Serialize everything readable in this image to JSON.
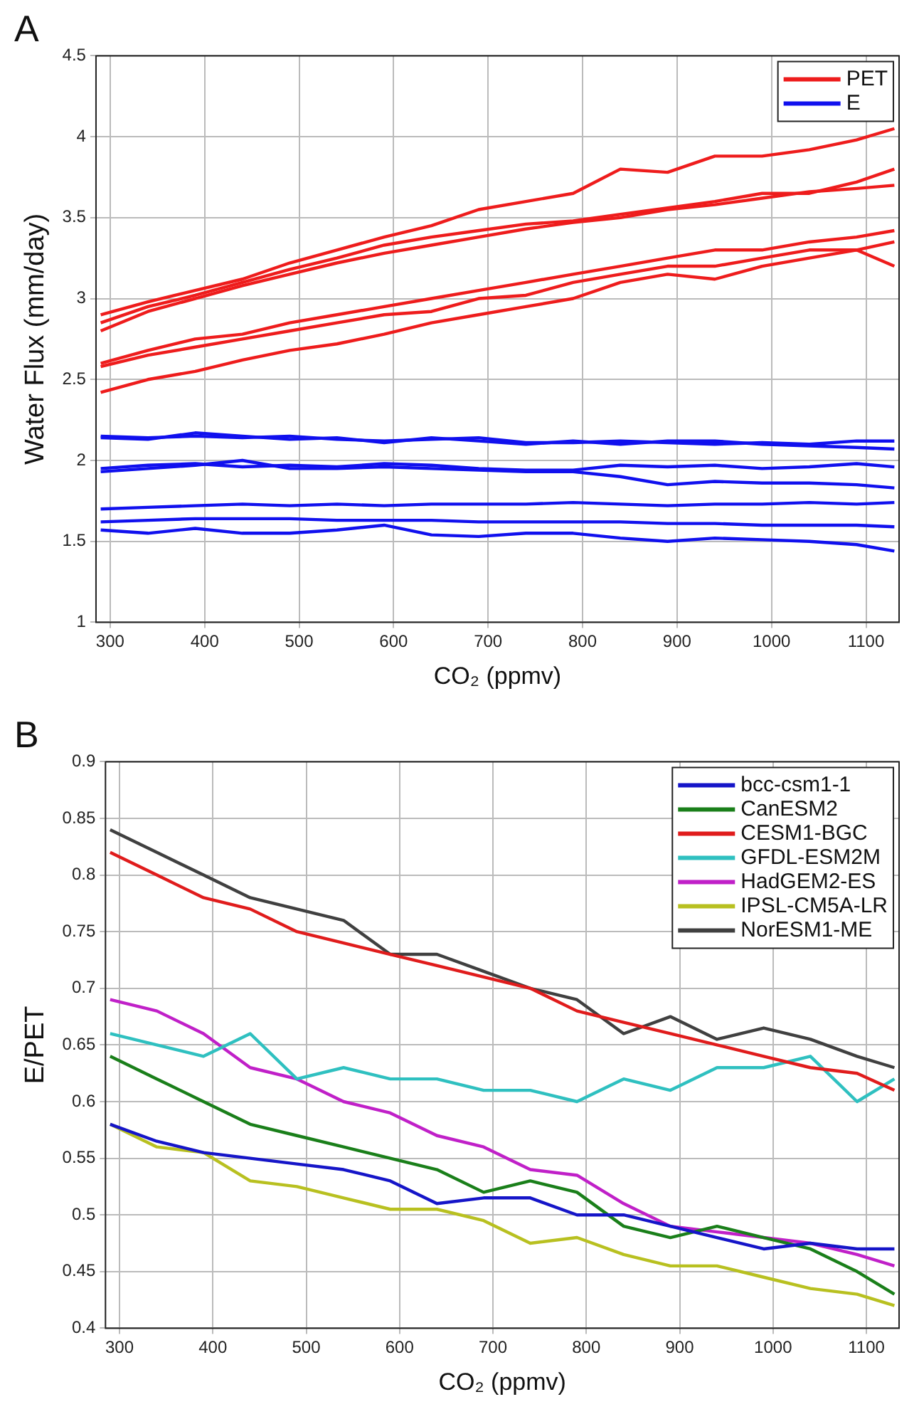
{
  "chart_data": [
    {
      "type": "line",
      "title": "A",
      "xlabel": "CO₂ (ppmv)",
      "ylabel": "Water Flux (mm/day)",
      "x": [
        290,
        340,
        390,
        440,
        490,
        540,
        590,
        640,
        690,
        740,
        790,
        840,
        890,
        940,
        990,
        1040,
        1090,
        1130
      ],
      "xlim": [
        285,
        1135
      ],
      "xticks": [
        300,
        400,
        500,
        600,
        700,
        800,
        900,
        1000,
        1100
      ],
      "ylim": [
        1,
        4.5
      ],
      "yticks": [
        1,
        1.5,
        2,
        2.5,
        3,
        3.5,
        4,
        4.5
      ],
      "grid": true,
      "legend": "top right",
      "series": [
        {
          "name": "PET",
          "color": "#ee1c1c",
          "values": [
            2.9,
            2.98,
            3.05,
            3.12,
            3.22,
            3.3,
            3.38,
            3.45,
            3.55,
            3.6,
            3.65,
            3.8,
            3.78,
            3.88,
            3.88,
            3.92,
            3.98,
            4.05
          ]
        },
        {
          "color": "#ee1c1c",
          "values": [
            2.85,
            2.95,
            3.02,
            3.1,
            3.18,
            3.25,
            3.33,
            3.38,
            3.42,
            3.46,
            3.48,
            3.52,
            3.56,
            3.6,
            3.65,
            3.65,
            3.72,
            3.8
          ]
        },
        {
          "color": "#ee1c1c",
          "values": [
            2.8,
            2.92,
            3.0,
            3.08,
            3.15,
            3.22,
            3.28,
            3.33,
            3.38,
            3.43,
            3.47,
            3.5,
            3.55,
            3.58,
            3.62,
            3.66,
            3.68,
            3.7
          ]
        },
        {
          "color": "#ee1c1c",
          "values": [
            2.6,
            2.68,
            2.75,
            2.78,
            2.85,
            2.9,
            2.95,
            3.0,
            3.05,
            3.1,
            3.15,
            3.2,
            3.25,
            3.3,
            3.3,
            3.35,
            3.38,
            3.42
          ]
        },
        {
          "color": "#ee1c1c",
          "values": [
            2.58,
            2.65,
            2.7,
            2.75,
            2.8,
            2.85,
            2.9,
            2.92,
            3.0,
            3.02,
            3.1,
            3.15,
            3.2,
            3.2,
            3.25,
            3.3,
            3.3,
            3.35
          ]
        },
        {
          "color": "#ee1c1c",
          "values": [
            2.42,
            2.5,
            2.55,
            2.62,
            2.68,
            2.72,
            2.78,
            2.85,
            2.9,
            2.95,
            3.0,
            3.1,
            3.15,
            3.12,
            3.2,
            3.25,
            3.3,
            3.2
          ]
        },
        {
          "name": "E",
          "color": "#1010ee",
          "values": [
            2.15,
            2.14,
            2.15,
            2.14,
            2.15,
            2.13,
            2.12,
            2.13,
            2.14,
            2.11,
            2.11,
            2.12,
            2.11,
            2.1,
            2.11,
            2.1,
            2.12,
            2.12
          ]
        },
        {
          "color": "#1010ee",
          "values": [
            2.14,
            2.13,
            2.17,
            2.15,
            2.13,
            2.14,
            2.11,
            2.14,
            2.12,
            2.1,
            2.12,
            2.1,
            2.12,
            2.12,
            2.1,
            2.09,
            2.08,
            2.07
          ]
        },
        {
          "color": "#1010ee",
          "values": [
            1.95,
            1.97,
            1.98,
            1.96,
            1.97,
            1.96,
            1.98,
            1.97,
            1.95,
            1.94,
            1.94,
            1.97,
            1.96,
            1.97,
            1.95,
            1.96,
            1.98,
            1.96
          ]
        },
        {
          "color": "#1010ee",
          "values": [
            1.93,
            1.95,
            1.97,
            2.0,
            1.95,
            1.95,
            1.96,
            1.95,
            1.94,
            1.93,
            1.93,
            1.9,
            1.85,
            1.87,
            1.86,
            1.86,
            1.85,
            1.83
          ]
        },
        {
          "color": "#1010ee",
          "values": [
            1.7,
            1.71,
            1.72,
            1.73,
            1.72,
            1.73,
            1.72,
            1.73,
            1.73,
            1.73,
            1.74,
            1.73,
            1.72,
            1.73,
            1.73,
            1.74,
            1.73,
            1.74
          ]
        },
        {
          "color": "#1010ee",
          "values": [
            1.62,
            1.63,
            1.64,
            1.64,
            1.64,
            1.63,
            1.63,
            1.63,
            1.62,
            1.62,
            1.62,
            1.62,
            1.61,
            1.61,
            1.6,
            1.6,
            1.6,
            1.59
          ]
        },
        {
          "color": "#1010ee",
          "values": [
            1.57,
            1.55,
            1.58,
            1.55,
            1.55,
            1.57,
            1.6,
            1.54,
            1.53,
            1.55,
            1.55,
            1.52,
            1.5,
            1.52,
            1.51,
            1.5,
            1.48,
            1.44
          ]
        }
      ]
    },
    {
      "type": "line",
      "title": "B",
      "xlabel": "CO₂ (ppmv)",
      "ylabel": "E/PET",
      "x": [
        290,
        340,
        390,
        440,
        490,
        540,
        590,
        640,
        690,
        740,
        790,
        840,
        890,
        940,
        990,
        1040,
        1090,
        1130
      ],
      "xlim": [
        285,
        1135
      ],
      "xticks": [
        300,
        400,
        500,
        600,
        700,
        800,
        900,
        1000,
        1100
      ],
      "ylim": [
        0.4,
        0.9
      ],
      "yticks": [
        0.4,
        0.45,
        0.5,
        0.55,
        0.6,
        0.65,
        0.7,
        0.75,
        0.8,
        0.85,
        0.9
      ],
      "grid": true,
      "legend": "top right",
      "series": [
        {
          "name": "bcc-csm1-1",
          "color": "#1515c8",
          "values": [
            0.58,
            0.565,
            0.555,
            0.55,
            0.545,
            0.54,
            0.53,
            0.51,
            0.515,
            0.515,
            0.5,
            0.5,
            0.49,
            0.48,
            0.47,
            0.475,
            0.47,
            0.47
          ]
        },
        {
          "name": "CanESM2",
          "color": "#1a7f1a",
          "values": [
            0.64,
            0.62,
            0.6,
            0.58,
            0.57,
            0.56,
            0.55,
            0.54,
            0.52,
            0.53,
            0.52,
            0.49,
            0.48,
            0.49,
            0.48,
            0.47,
            0.45,
            0.43
          ]
        },
        {
          "name": "CESM1-BGC",
          "color": "#e01c1c",
          "values": [
            0.82,
            0.8,
            0.78,
            0.77,
            0.75,
            0.74,
            0.73,
            0.72,
            0.71,
            0.7,
            0.68,
            0.67,
            0.66,
            0.65,
            0.64,
            0.63,
            0.625,
            0.61
          ]
        },
        {
          "name": "GFDL-ESM2M",
          "color": "#2fc0c0",
          "values": [
            0.66,
            0.65,
            0.64,
            0.66,
            0.62,
            0.63,
            0.62,
            0.62,
            0.61,
            0.61,
            0.6,
            0.62,
            0.61,
            0.63,
            0.63,
            0.64,
            0.6,
            0.62
          ]
        },
        {
          "name": "HadGEM2-ES",
          "color": "#c020c8",
          "values": [
            0.69,
            0.68,
            0.66,
            0.63,
            0.62,
            0.6,
            0.59,
            0.57,
            0.56,
            0.54,
            0.535,
            0.51,
            0.49,
            0.485,
            0.48,
            0.475,
            0.465,
            0.455
          ]
        },
        {
          "name": "IPSL-CM5A-LR",
          "color": "#b8c020",
          "values": [
            0.58,
            0.56,
            0.555,
            0.53,
            0.525,
            0.515,
            0.505,
            0.505,
            0.495,
            0.475,
            0.48,
            0.465,
            0.455,
            0.455,
            0.445,
            0.435,
            0.43,
            0.42
          ]
        },
        {
          "name": "NorESM1-ME",
          "color": "#404040",
          "values": [
            0.84,
            0.82,
            0.8,
            0.78,
            0.77,
            0.76,
            0.73,
            0.73,
            0.715,
            0.7,
            0.69,
            0.66,
            0.675,
            0.655,
            0.665,
            0.655,
            0.64,
            0.63
          ]
        }
      ]
    }
  ]
}
